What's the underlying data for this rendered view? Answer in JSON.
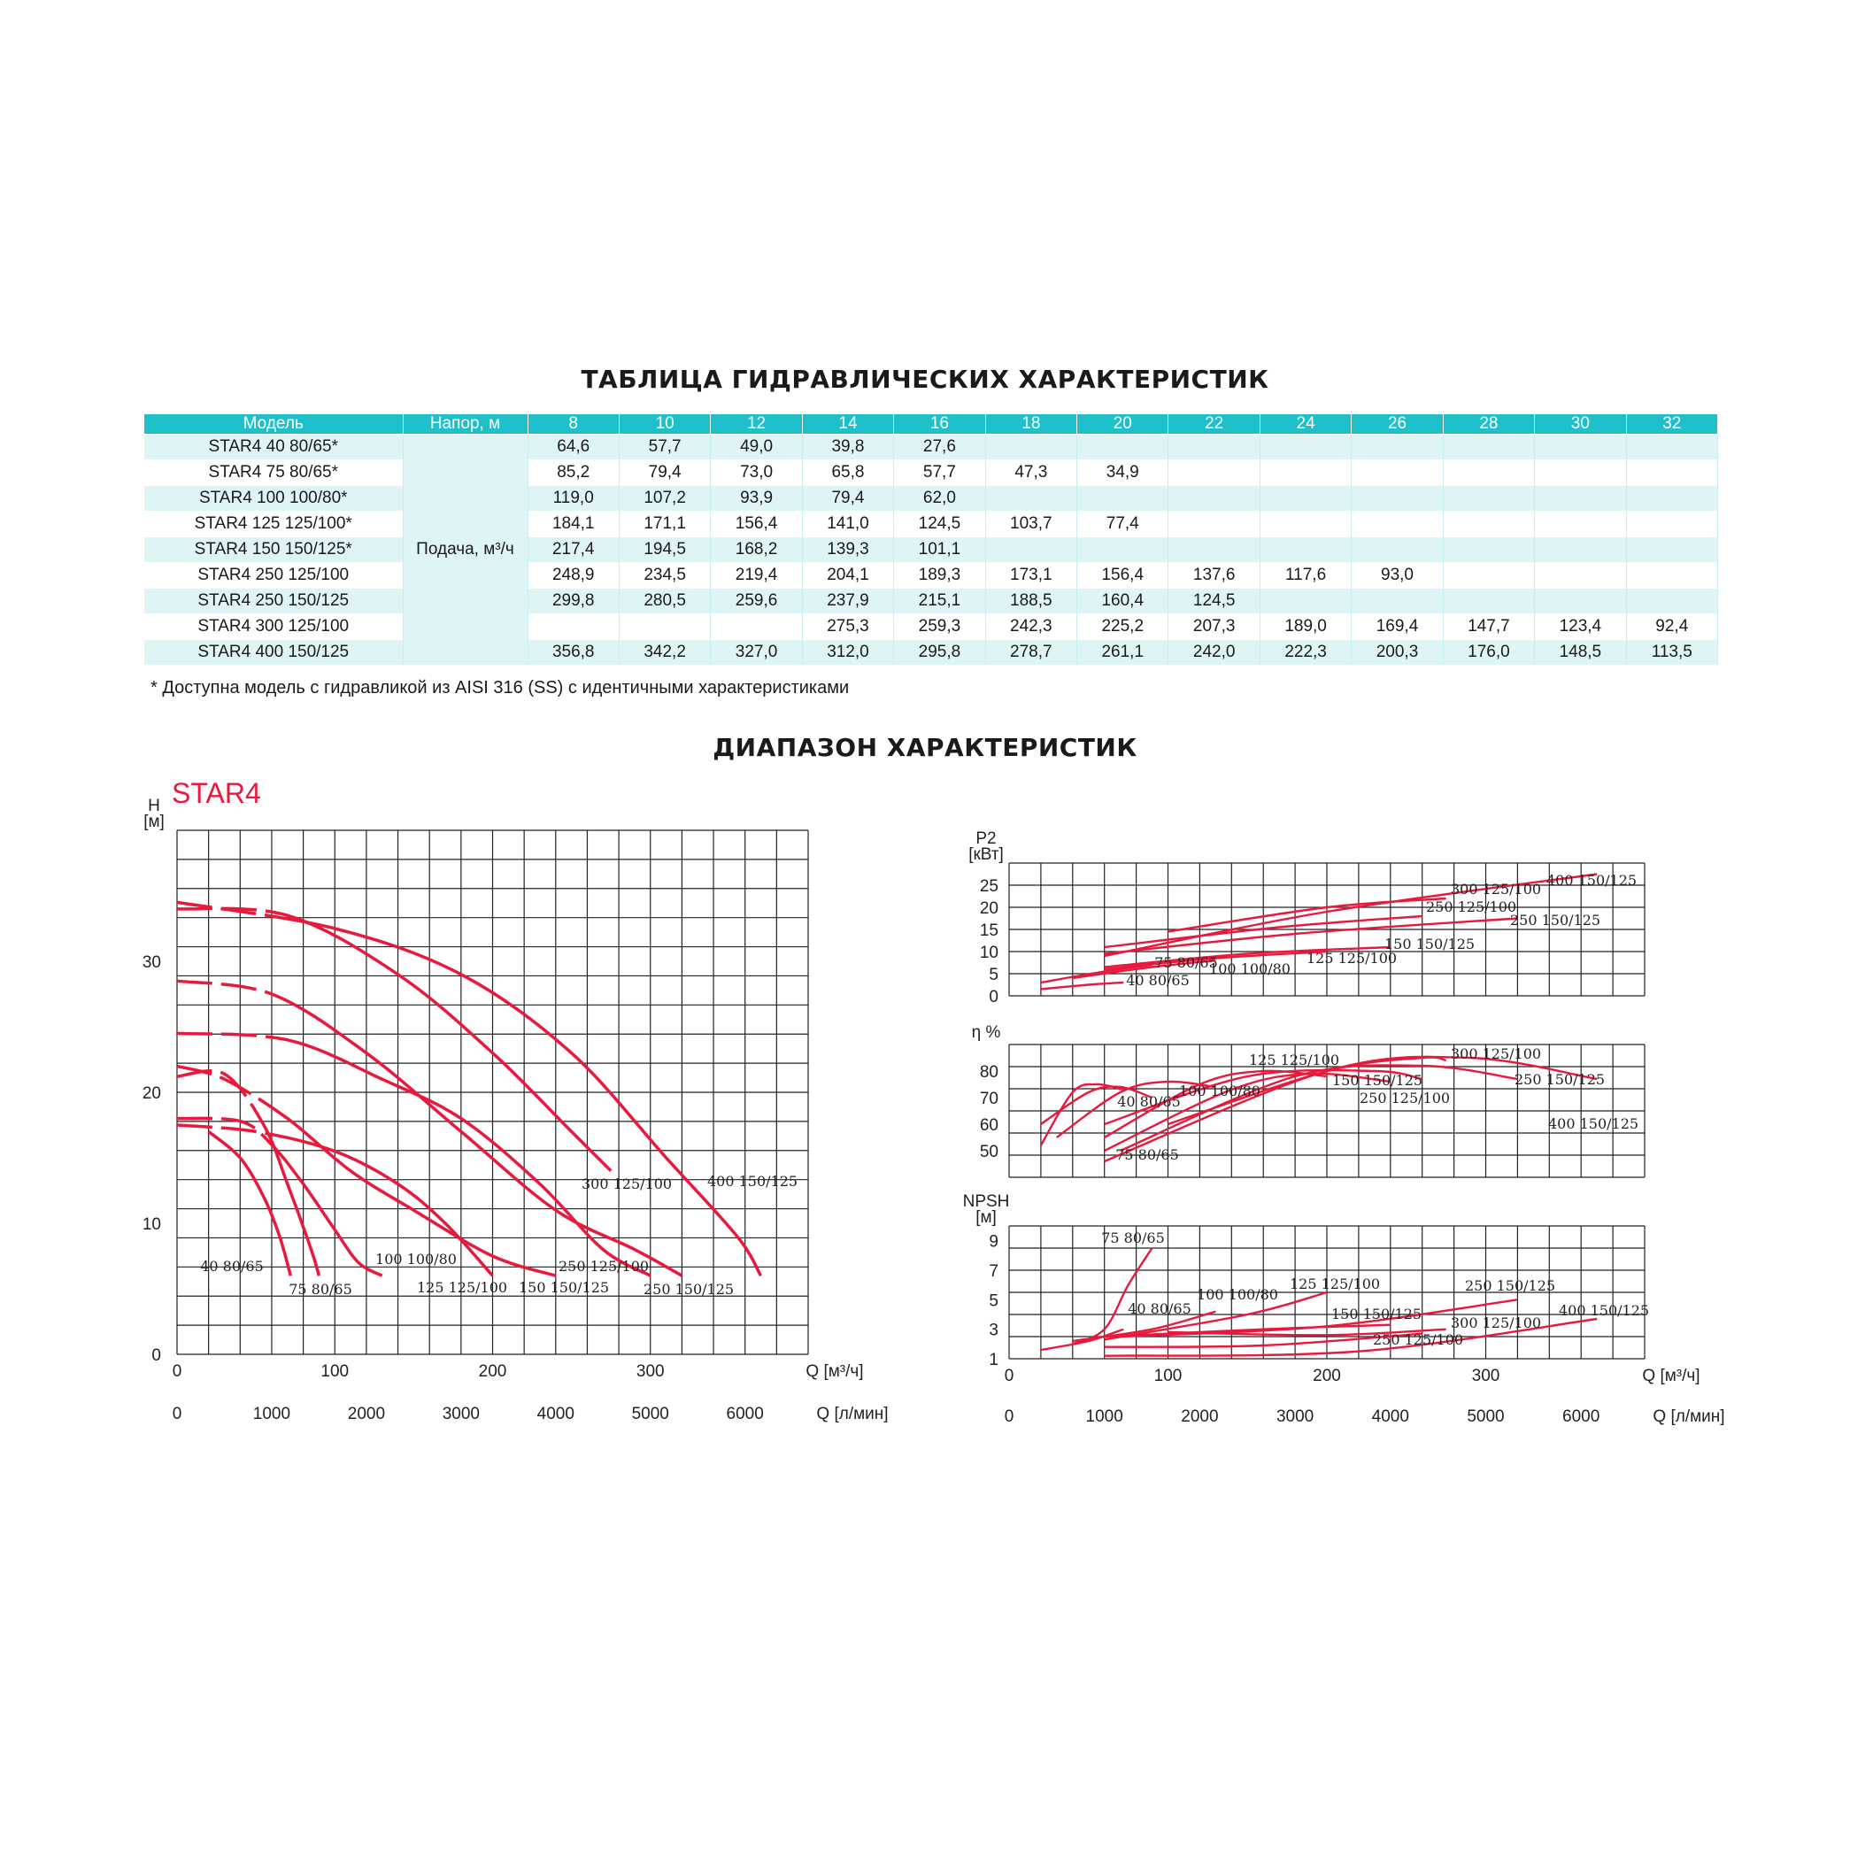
{
  "titles": {
    "table": "ТАБЛИЦА ГИДРАВЛИЧЕСКИХ ХАРАКТЕРИСТИК",
    "range": "ДИАПАЗОН ХАРАКТЕРИСТИК"
  },
  "table": {
    "model_header": "Модель",
    "head_header": "Напор, м",
    "flow_label": "Подача, м³/ч",
    "heads": [
      "8",
      "10",
      "12",
      "14",
      "16",
      "18",
      "20",
      "22",
      "24",
      "26",
      "28",
      "30",
      "32"
    ],
    "rows": [
      {
        "model": "STAR4 40 80/65*",
        "values": [
          "64,6",
          "57,7",
          "49,0",
          "39,8",
          "27,6",
          "",
          "",
          "",
          "",
          "",
          "",
          "",
          ""
        ]
      },
      {
        "model": "STAR4 75 80/65*",
        "values": [
          "85,2",
          "79,4",
          "73,0",
          "65,8",
          "57,7",
          "47,3",
          "34,9",
          "",
          "",
          "",
          "",
          "",
          ""
        ]
      },
      {
        "model": "STAR4 100 100/80*",
        "values": [
          "119,0",
          "107,2",
          "93,9",
          "79,4",
          "62,0",
          "",
          "",
          "",
          "",
          "",
          "",
          "",
          ""
        ]
      },
      {
        "model": "STAR4 125 125/100*",
        "values": [
          "184,1",
          "171,1",
          "156,4",
          "141,0",
          "124,5",
          "103,7",
          "77,4",
          "",
          "",
          "",
          "",
          "",
          ""
        ]
      },
      {
        "model": "STAR4 150 150/125*",
        "values": [
          "217,4",
          "194,5",
          "168,2",
          "139,3",
          "101,1",
          "",
          "",
          "",
          "",
          "",
          "",
          "",
          ""
        ]
      },
      {
        "model": "STAR4 250 125/100",
        "values": [
          "248,9",
          "234,5",
          "219,4",
          "204,1",
          "189,3",
          "173,1",
          "156,4",
          "137,6",
          "117,6",
          "93,0",
          "",
          "",
          ""
        ]
      },
      {
        "model": "STAR4 250 150/125",
        "values": [
          "299,8",
          "280,5",
          "259,6",
          "237,9",
          "215,1",
          "188,5",
          "160,4",
          "124,5",
          "",
          "",
          "",
          "",
          ""
        ]
      },
      {
        "model": "STAR4 300 125/100",
        "values": [
          "",
          "",
          "",
          "275,3",
          "259,3",
          "242,3",
          "225,2",
          "207,3",
          "189,0",
          "169,4",
          "147,7",
          "123,4",
          "92,4"
        ]
      },
      {
        "model": "STAR4 400 150/125",
        "values": [
          "356,8",
          "342,2",
          "327,0",
          "312,0",
          "295,8",
          "278,7",
          "261,1",
          "242,0",
          "222,3",
          "200,3",
          "176,0",
          "148,5",
          "113,5"
        ]
      }
    ]
  },
  "note": "* Доступна модель с гидравликой из AISI 316 (SS) с идентичными характеристиками",
  "brand": "STAR4",
  "colors": {
    "header": "#1fc0c9",
    "row_tint": "#dff4f5",
    "curve": "#e8193c"
  },
  "chart_data": [
    {
      "type": "line",
      "title": "STAR4",
      "ylabel": "H [м]",
      "xlabel": "Q [м³/ч]",
      "xlabel2": "Q [л/мин]",
      "xlim": [
        0,
        400
      ],
      "ylim": [
        0,
        40
      ],
      "xticks": [
        0,
        100,
        200,
        300
      ],
      "xticks2": [
        0,
        1000,
        2000,
        3000,
        4000,
        5000,
        6000
      ],
      "yticks": [
        0,
        10,
        20,
        30
      ],
      "y_axis_labels": [
        "H",
        "[м]"
      ],
      "series": [
        {
          "name": "40 80/65",
          "points": [
            [
              20,
              17
            ],
            [
              40,
              15
            ],
            [
              55,
              12
            ],
            [
              65,
              9
            ],
            [
              72,
              6
            ]
          ]
        },
        {
          "name": "75 80/65",
          "points": [
            [
              0,
              21.2
            ],
            [
              30,
              21.4
            ],
            [
              55,
              17.5
            ],
            [
              70,
              13
            ],
            [
              85,
              8
            ],
            [
              90,
              6
            ]
          ]
        },
        {
          "name": "100 100/80",
          "points": [
            [
              0,
              18
            ],
            [
              40,
              17.8
            ],
            [
              60,
              16
            ],
            [
              80,
              13
            ],
            [
              100,
              9.5
            ],
            [
              115,
              7
            ],
            [
              130,
              6
            ]
          ]
        },
        {
          "name": "125 125/100",
          "points": [
            [
              0,
              17.5
            ],
            [
              50,
              17
            ],
            [
              100,
              15.5
            ],
            [
              140,
              13
            ],
            [
              170,
              10
            ],
            [
              200,
              6
            ]
          ]
        },
        {
          "name": "150 150/125",
          "points": [
            [
              0,
              22
            ],
            [
              30,
              21
            ],
            [
              70,
              18
            ],
            [
              110,
              14
            ],
            [
              150,
              11
            ],
            [
              200,
              7.5
            ],
            [
              240,
              6
            ]
          ]
        },
        {
          "name": "250 125/100",
          "points": [
            [
              0,
              24.5
            ],
            [
              70,
              24
            ],
            [
              130,
              21
            ],
            [
              180,
              18
            ],
            [
              230,
              13
            ],
            [
              270,
              8
            ],
            [
              300,
              6
            ]
          ]
        },
        {
          "name": "250 150/125",
          "points": [
            [
              0,
              28.5
            ],
            [
              60,
              27.5
            ],
            [
              120,
              23
            ],
            [
              180,
              17
            ],
            [
              240,
              11
            ],
            [
              290,
              8
            ],
            [
              320,
              6
            ]
          ]
        },
        {
          "name": "300 125/100",
          "points": [
            [
              0,
              34
            ],
            [
              70,
              33.5
            ],
            [
              140,
              29
            ],
            [
              200,
              23
            ],
            [
              250,
              17
            ],
            [
              275,
              14
            ]
          ]
        },
        {
          "name": "400 150/125",
          "points": [
            [
              0,
              34.5
            ],
            [
              100,
              32.5
            ],
            [
              180,
              29
            ],
            [
              250,
              23
            ],
            [
              310,
              15
            ],
            [
              355,
              9
            ],
            [
              370,
              6
            ]
          ]
        }
      ],
      "labels": [
        "40 80/65",
        "75 80/65",
        "100 100/80",
        "125 125/100",
        "150 150/125",
        "250 125/100",
        "250 150/125",
        "300 125/100",
        "400 150/125"
      ]
    },
    {
      "type": "line",
      "ylabel": "P2 [кВт]",
      "y_axis_labels": [
        "P2",
        "[кВт]"
      ],
      "xlim": [
        0,
        400
      ],
      "ylim": [
        0,
        30
      ],
      "yticks": [
        0,
        5,
        10,
        15,
        20,
        25
      ],
      "series": [
        {
          "name": "40 80/65",
          "points": [
            [
              20,
              1.5
            ],
            [
              50,
              2.5
            ],
            [
              72,
              3
            ]
          ]
        },
        {
          "name": "75 80/65",
          "points": [
            [
              20,
              3
            ],
            [
              60,
              5.5
            ],
            [
              90,
              7
            ]
          ]
        },
        {
          "name": "100 100/80",
          "points": [
            [
              40,
              4
            ],
            [
              90,
              6.5
            ],
            [
              130,
              8
            ]
          ]
        },
        {
          "name": "125 125/100",
          "points": [
            [
              60,
              6
            ],
            [
              130,
              8.5
            ],
            [
              200,
              10
            ]
          ]
        },
        {
          "name": "150 150/125",
          "points": [
            [
              60,
              6.5
            ],
            [
              150,
              9.5
            ],
            [
              240,
              11
            ]
          ]
        },
        {
          "name": "250 150/125",
          "points": [
            [
              60,
              9.5
            ],
            [
              180,
              14
            ],
            [
              320,
              17.5
            ]
          ]
        },
        {
          "name": "250 125/100",
          "points": [
            [
              60,
              11
            ],
            [
              170,
              15.5
            ],
            [
              260,
              18
            ]
          ]
        },
        {
          "name": "300 125/100",
          "points": [
            [
              100,
              14.5
            ],
            [
              200,
              20
            ],
            [
              275,
              22
            ]
          ]
        },
        {
          "name": "400 150/125",
          "points": [
            [
              60,
              9
            ],
            [
              200,
              19
            ],
            [
              370,
              27.5
            ]
          ]
        }
      ],
      "labels": [
        "300 125/100",
        "400 150/125",
        "250 125/100",
        "250 150/125",
        "150 150/125",
        "125 125/100",
        "75 80/65",
        "100 100/80",
        "40 80/65"
      ]
    },
    {
      "type": "line",
      "ylabel": "η %",
      "y_axis_labels": [
        "η %"
      ],
      "xlim": [
        0,
        400
      ],
      "ylim": [
        40,
        90
      ],
      "yticks": [
        50,
        60,
        70,
        80
      ],
      "series": [
        {
          "name": "40 80/65",
          "points": [
            [
              20,
              52
            ],
            [
              40,
              72
            ],
            [
              55,
              75
            ],
            [
              72,
              73
            ]
          ]
        },
        {
          "name": "75 80/65",
          "points": [
            [
              20,
              60
            ],
            [
              50,
              72
            ],
            [
              70,
              74
            ],
            [
              90,
              70
            ]
          ]
        },
        {
          "name": "100 100/80",
          "points": [
            [
              30,
              55
            ],
            [
              70,
              72
            ],
            [
              100,
              76
            ],
            [
              130,
              74
            ]
          ]
        },
        {
          "name": "125 125/100",
          "points": [
            [
              60,
              55
            ],
            [
              120,
              75
            ],
            [
              160,
              80
            ],
            [
              200,
              78
            ]
          ]
        },
        {
          "name": "150 150/125",
          "points": [
            [
              60,
              50
            ],
            [
              140,
              73
            ],
            [
              190,
              79
            ],
            [
              240,
              76
            ]
          ]
        },
        {
          "name": "250 125/100",
          "points": [
            [
              60,
              60
            ],
            [
              150,
              78
            ],
            [
              230,
              80
            ],
            [
              260,
              77
            ]
          ]
        },
        {
          "name": "250 150/125",
          "points": [
            [
              70,
              50
            ],
            [
              180,
              78
            ],
            [
              260,
              82
            ],
            [
              320,
              77
            ]
          ]
        },
        {
          "name": "300 125/100",
          "points": [
            [
              100,
              60
            ],
            [
              200,
              80
            ],
            [
              260,
              85
            ],
            [
              275,
              84
            ]
          ]
        },
        {
          "name": "400 150/125",
          "points": [
            [
              60,
              46
            ],
            [
              200,
              80
            ],
            [
              290,
              85
            ],
            [
              370,
              77
            ]
          ]
        }
      ],
      "labels": [
        "125 125/100",
        "300 125/100",
        "100 100/80",
        "150 150/125",
        "40 80/65",
        "250 125/100",
        "250 150/125",
        "400 150/125",
        "75 80/65"
      ]
    },
    {
      "type": "line",
      "ylabel": "NPSH [м]",
      "y_axis_labels": [
        "NPSH",
        "[м]"
      ],
      "xlabel": "Q [м³/ч]",
      "xlabel2": "Q [л/мин]",
      "xlim": [
        0,
        400
      ],
      "ylim": [
        1,
        10
      ],
      "xticks": [
        0,
        100,
        200,
        300
      ],
      "xticks2": [
        0,
        1000,
        2000,
        3000,
        4000,
        5000,
        6000
      ],
      "yticks": [
        1,
        3,
        5,
        7,
        9
      ],
      "series": [
        {
          "name": "75 80/65",
          "points": [
            [
              40,
              2
            ],
            [
              60,
              3
            ],
            [
              75,
              6
            ],
            [
              90,
              8.5
            ]
          ]
        },
        {
          "name": "40 80/65",
          "points": [
            [
              20,
              1.6
            ],
            [
              50,
              2.2
            ],
            [
              72,
              3
            ]
          ]
        },
        {
          "name": "100 100/80",
          "points": [
            [
              40,
              2.2
            ],
            [
              90,
              3
            ],
            [
              130,
              4.2
            ]
          ]
        },
        {
          "name": "125 125/100",
          "points": [
            [
              60,
              2.3
            ],
            [
              150,
              4
            ],
            [
              200,
              5.5
            ]
          ]
        },
        {
          "name": "150 150/125",
          "points": [
            [
              60,
              2.5
            ],
            [
              160,
              3
            ],
            [
              240,
              3.3
            ]
          ]
        },
        {
          "name": "250 150/125",
          "points": [
            [
              70,
              2.5
            ],
            [
              200,
              3.2
            ],
            [
              320,
              5
            ]
          ]
        },
        {
          "name": "300 125/100",
          "points": [
            [
              100,
              2.8
            ],
            [
              200,
              2.6
            ],
            [
              275,
              3
            ]
          ]
        },
        {
          "name": "250 125/100",
          "points": [
            [
              60,
              1.8
            ],
            [
              160,
              1.9
            ],
            [
              260,
              2.7
            ]
          ]
        },
        {
          "name": "400 150/125",
          "points": [
            [
              60,
              1.2
            ],
            [
              220,
              1.5
            ],
            [
              370,
              3.7
            ]
          ]
        }
      ],
      "labels": [
        "75 80/65",
        "40 80/65",
        "100 100/80",
        "125 125/100",
        "150 150/125",
        "250 150/125",
        "300 125/100",
        "250 125/100",
        "400 150/125"
      ]
    }
  ]
}
